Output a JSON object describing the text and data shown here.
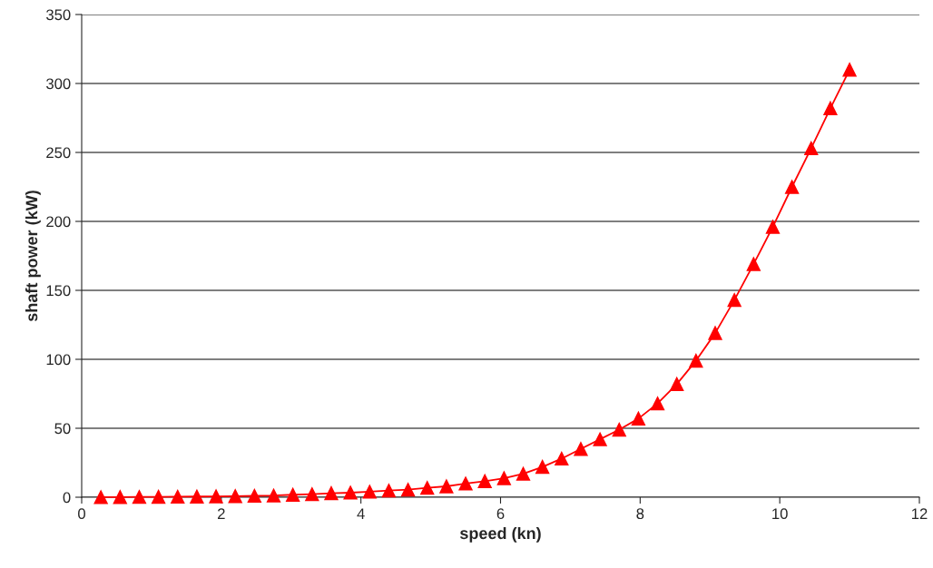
{
  "chart_data": {
    "type": "line",
    "xlabel": "speed (kn)",
    "ylabel": "shaft power (kW)",
    "x": [
      0.275,
      0.55,
      0.825,
      1.1,
      1.375,
      1.65,
      1.925,
      2.2,
      2.475,
      2.75,
      3.025,
      3.3,
      3.575,
      3.85,
      4.125,
      4.4,
      4.675,
      4.95,
      5.225,
      5.5,
      5.775,
      6.05,
      6.325,
      6.6,
      6.875,
      7.15,
      7.425,
      7.7,
      7.975,
      8.25,
      8.525,
      8.8,
      9.075,
      9.35,
      9.625,
      9.9,
      10.175,
      10.45,
      10.725,
      11.0
    ],
    "series": [
      {
        "color": "#ff0000",
        "values": [
          0.03,
          0.1,
          0.2,
          0.3,
          0.4,
          0.5,
          0.6,
          0.8,
          1,
          1.2,
          1.8,
          2.2,
          2.9,
          3.3,
          4,
          4.8,
          5.5,
          6.8,
          7.9,
          9.9,
          11.6,
          13.8,
          17,
          22,
          28,
          35,
          42,
          49,
          57,
          68,
          82,
          99,
          119,
          143,
          169,
          196,
          225,
          253,
          282,
          310
        ]
      }
    ],
    "xlim": [
      0,
      12
    ],
    "xticks": [
      0,
      2,
      4,
      6,
      8,
      10,
      12
    ],
    "ylim": [
      0,
      350
    ],
    "yticks": [
      0,
      50,
      100,
      150,
      200,
      250,
      300,
      350
    ],
    "grid": "y",
    "marker": "triangle",
    "line_style": "solid",
    "legend": false
  }
}
